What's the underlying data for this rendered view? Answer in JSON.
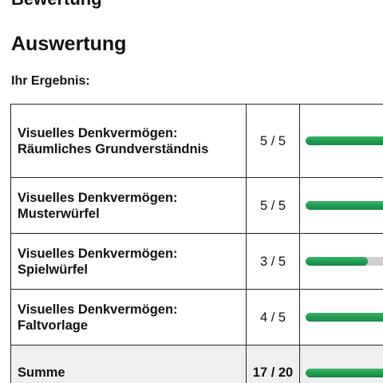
{
  "page": {
    "cut_heading": "Bewertung",
    "title": "Auswertung",
    "subtitle": "Ihr Ergebnis:"
  },
  "results": [
    {
      "label": "Visuelles Denkvermögen: Räumliches Grundverständnis",
      "score": "5 / 5",
      "fraction": 1.0
    },
    {
      "label": "Visuelles Denkvermögen: Musterwürfel",
      "score": "5 / 5",
      "fraction": 1.0
    },
    {
      "label": "Visuelles Denkvermögen: Spielwürfel",
      "score": "3 / 5",
      "fraction": 0.6
    },
    {
      "label": "Visuelles Denkvermögen: Faltvorlage",
      "score": "4 / 5",
      "fraction": 0.8
    }
  ],
  "total": {
    "label": "Summe",
    "score": "17 / 20",
    "fraction": 0.85
  },
  "colors": {
    "bar_fill": "#1f9950",
    "bar_track": "#cfcfcf",
    "sum_row_background": "#efefef"
  }
}
